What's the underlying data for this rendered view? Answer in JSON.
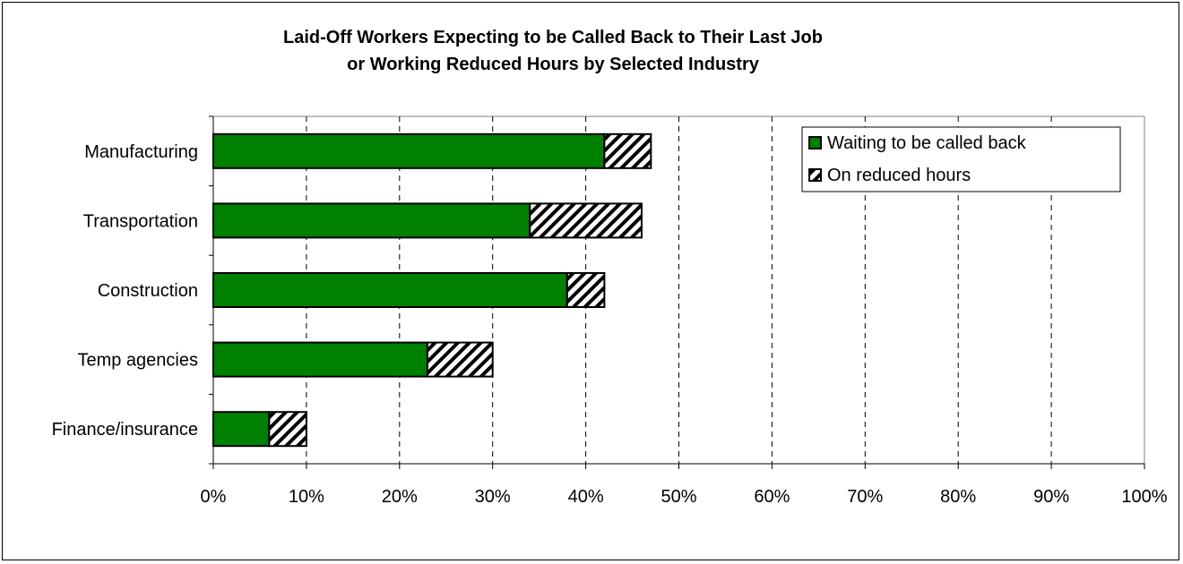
{
  "chart_data": {
    "type": "bar",
    "orientation": "horizontal",
    "stacked": true,
    "title_lines": [
      "Laid-Off Workers Expecting to be Called Back to Their Last Job",
      "or Working Reduced Hours by Selected Industry"
    ],
    "categories": [
      "Manufacturing",
      "Transportation",
      "Construction",
      "Temp agencies",
      "Finance/insurance"
    ],
    "series": [
      {
        "name": "Waiting to be called back",
        "values": [
          42,
          34,
          38,
          23,
          6
        ],
        "color": "#008000",
        "pattern": "solid"
      },
      {
        "name": "On reduced hours",
        "values": [
          5,
          12,
          4,
          7,
          4
        ],
        "color": "#ffffff",
        "pattern": "diagonal-hatch"
      }
    ],
    "xlim": [
      0,
      100
    ],
    "x_ticks": [
      0,
      10,
      20,
      30,
      40,
      50,
      60,
      70,
      80,
      90,
      100
    ],
    "x_tick_labels": [
      "0%",
      "10%",
      "20%",
      "30%",
      "40%",
      "50%",
      "60%",
      "70%",
      "80%",
      "90%",
      "100%"
    ],
    "grid": "vertical dashed",
    "legend_position": "top-right"
  }
}
